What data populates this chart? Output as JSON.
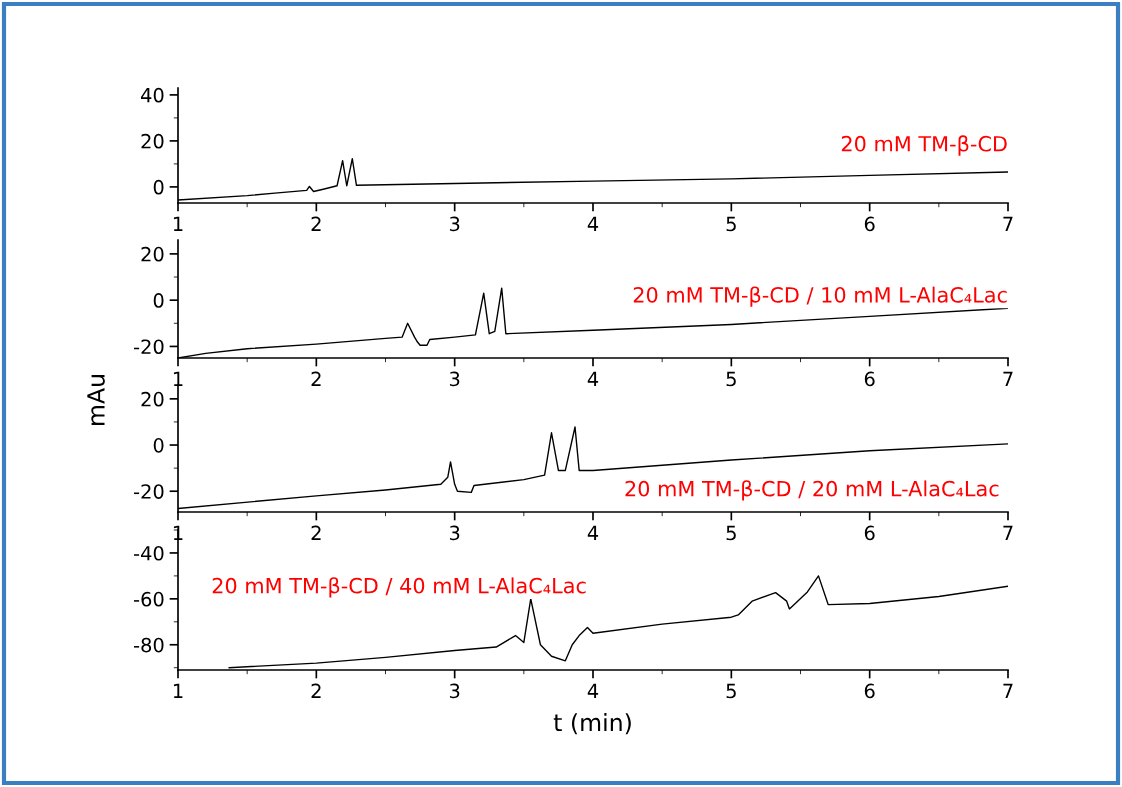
{
  "chart_data": [
    {
      "type": "line",
      "xlim": [
        1,
        7
      ],
      "xticks": [
        1,
        2,
        3,
        4,
        5,
        6,
        7
      ],
      "ylim": [
        -7,
        43
      ],
      "yticks": [
        0,
        20,
        40
      ],
      "grid": false,
      "marker": "none",
      "line_style": "solid",
      "series": [
        {
          "color": "#000000",
          "x": [
            1,
            1.5,
            1.7,
            1.93,
            1.95,
            1.98,
            2.05,
            2.15,
            2.19,
            2.22,
            2.26,
            2.29,
            3,
            4,
            5,
            6,
            7
          ],
          "values": [
            -5.7,
            -3.8,
            -2.7,
            -1.5,
            0.2,
            -2,
            -1,
            0.5,
            11.4,
            0.5,
            12.3,
            0.7,
            1.5,
            2.5,
            3.5,
            5,
            6.5
          ]
        }
      ],
      "annotations": [
        "20 mM TM-β-CD"
      ]
    },
    {
      "type": "line",
      "xlim": [
        1,
        7
      ],
      "xticks": [
        1,
        2,
        3,
        4,
        5,
        6,
        7
      ],
      "ylim": [
        -25,
        26
      ],
      "yticks": [
        -20,
        0,
        20
      ],
      "grid": false,
      "marker": "none",
      "line_style": "solid",
      "ylabel": "mAu",
      "series": [
        {
          "color": "#000000",
          "x": [
            1,
            1.2,
            1.5,
            2,
            2.5,
            2.62,
            2.66,
            2.71,
            2.73,
            2.75,
            2.8,
            2.82,
            3.0,
            3.15,
            3.21,
            3.25,
            3.29,
            3.34,
            3.37,
            4,
            5,
            6,
            7
          ],
          "values": [
            -25,
            -23,
            -21,
            -19,
            -16.5,
            -16,
            -10,
            -16,
            -18,
            -19.5,
            -19.5,
            -17,
            -16,
            -15,
            3,
            -14.5,
            -13.5,
            5.2,
            -14.5,
            -13,
            -10.5,
            -7,
            -3.5
          ]
        }
      ],
      "annotations": [
        "20 mM TM-β-CD / 10 mM L-AlaC₄Lac"
      ]
    },
    {
      "type": "line",
      "xlim": [
        1,
        7
      ],
      "xticks": [
        1,
        2,
        3,
        4,
        5,
        6,
        7
      ],
      "ylim": [
        -29,
        26
      ],
      "yticks": [
        -20,
        0,
        20
      ],
      "grid": false,
      "marker": "none",
      "line_style": "solid",
      "series": [
        {
          "color": "#000000",
          "x": [
            1,
            2,
            2.5,
            2.9,
            2.95,
            2.97,
            3.0,
            3.02,
            3.12,
            3.14,
            3.5,
            3.65,
            3.7,
            3.75,
            3.8,
            3.87,
            3.9,
            4,
            5,
            6,
            7
          ],
          "values": [
            -27.5,
            -22,
            -19.5,
            -17,
            -14,
            -7.3,
            -17,
            -20,
            -20.5,
            -17.5,
            -15,
            -13,
            5.3,
            -11,
            -11,
            7.8,
            -11,
            -11,
            -6.5,
            -2.5,
            0.5
          ]
        }
      ],
      "annotations": [
        "20 mM TM-β-CD / 20 mM L-AlaC₄Lac"
      ]
    },
    {
      "type": "line",
      "xlim": [
        1,
        7
      ],
      "xticks": [
        1,
        2,
        3,
        4,
        5,
        6,
        7
      ],
      "ylim": [
        -91,
        -30
      ],
      "yticks": [
        -80,
        -60,
        -40
      ],
      "grid": false,
      "marker": "none",
      "line_style": "solid",
      "xlabel": "t (min)",
      "series": [
        {
          "color": "#000000",
          "x": [
            1.37,
            2,
            2.5,
            3,
            3.3,
            3.44,
            3.5,
            3.55,
            3.62,
            3.7,
            3.8,
            3.85,
            3.9,
            3.96,
            4.0,
            4.5,
            5.0,
            5.05,
            5.15,
            5.32,
            5.4,
            5.42,
            5.55,
            5.63,
            5.7,
            6,
            6.5,
            7
          ],
          "values": [
            -90,
            -88,
            -85.5,
            -82.5,
            -81,
            -76,
            -79,
            -60,
            -80,
            -85,
            -87,
            -80,
            -76,
            -72.5,
            -75,
            -71,
            -68,
            -67,
            -61,
            -57.3,
            -61,
            -64.4,
            -57,
            -50,
            -62.5,
            -62,
            -59,
            -54.5
          ]
        }
      ],
      "annotations": [
        "20 mM TM-β-CD / 40 mM L-AlaC₄Lac"
      ]
    }
  ]
}
